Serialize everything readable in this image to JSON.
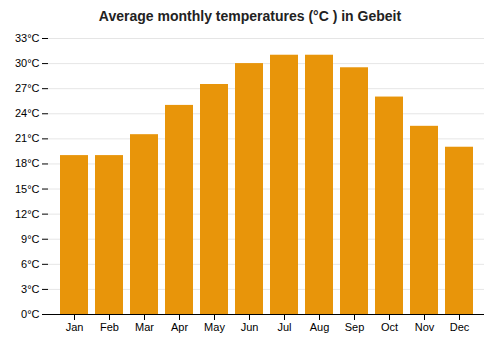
{
  "chart_data": {
    "type": "bar",
    "title": "Average monthly temperatures (°C ) in Gebeit",
    "categories": [
      "Jan",
      "Feb",
      "Mar",
      "Apr",
      "May",
      "Jun",
      "Jul",
      "Aug",
      "Sep",
      "Oct",
      "Nov",
      "Dec"
    ],
    "values": [
      19,
      19,
      21.5,
      25,
      27.5,
      30,
      31,
      31,
      29.5,
      26,
      22.5,
      20
    ],
    "color": "#E8950A",
    "ylim": [
      0,
      33
    ],
    "yticks": [
      {
        "value": 0,
        "label": "0°C"
      },
      {
        "value": 3,
        "label": "3°C"
      },
      {
        "value": 6,
        "label": "6°C"
      },
      {
        "value": 9,
        "label": "9°C"
      },
      {
        "value": 12,
        "label": "12°C"
      },
      {
        "value": 15,
        "label": "15°C"
      },
      {
        "value": 18,
        "label": "18°C"
      },
      {
        "value": 21,
        "label": "21°C"
      },
      {
        "value": 24,
        "label": "24°C"
      },
      {
        "value": 27,
        "label": "27°C"
      },
      {
        "value": 30,
        "label": "30°C"
      },
      {
        "value": 33,
        "label": "33°C"
      }
    ],
    "grid": true
  }
}
